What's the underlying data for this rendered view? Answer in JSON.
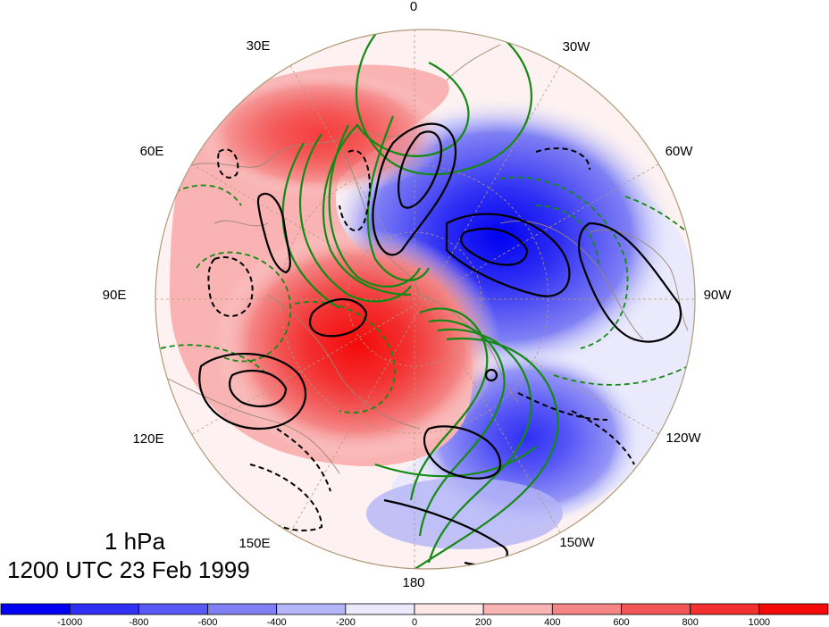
{
  "map": {
    "projection": "north polar stereographic",
    "longitude_labels": {
      "top": "0",
      "top_right": "30W",
      "right_upper": "60W",
      "right": "90W",
      "right_lower": "120W",
      "bottom_right": "150W",
      "bottom": "180",
      "bottom_left": "150E",
      "left_lower": "120E",
      "left": "90E",
      "left_upper": "60E",
      "top_left": "30E"
    },
    "level": "1 hPa",
    "time": "1200 UTC 23 Feb 1999"
  },
  "colorbar": {
    "tick_labels": [
      "-1000",
      "-800",
      "-600",
      "-400",
      "-200",
      "0",
      "200",
      "400",
      "600",
      "800",
      "1000"
    ],
    "colors": [
      "#0000f2",
      "#3030f4",
      "#5959f4",
      "#8080f4",
      "#b4b4f8",
      "#eaeafc",
      "#fde8e8",
      "#f9b3b3",
      "#f58484",
      "#f25555",
      "#f32f2f",
      "#f50a0a"
    ]
  },
  "colors": {
    "positive_fill": "#f50a0a",
    "negative_fill": "#0000f2",
    "green_contour": "#138a13",
    "black_contour": "#000000",
    "coastline": "#9a8672"
  }
}
